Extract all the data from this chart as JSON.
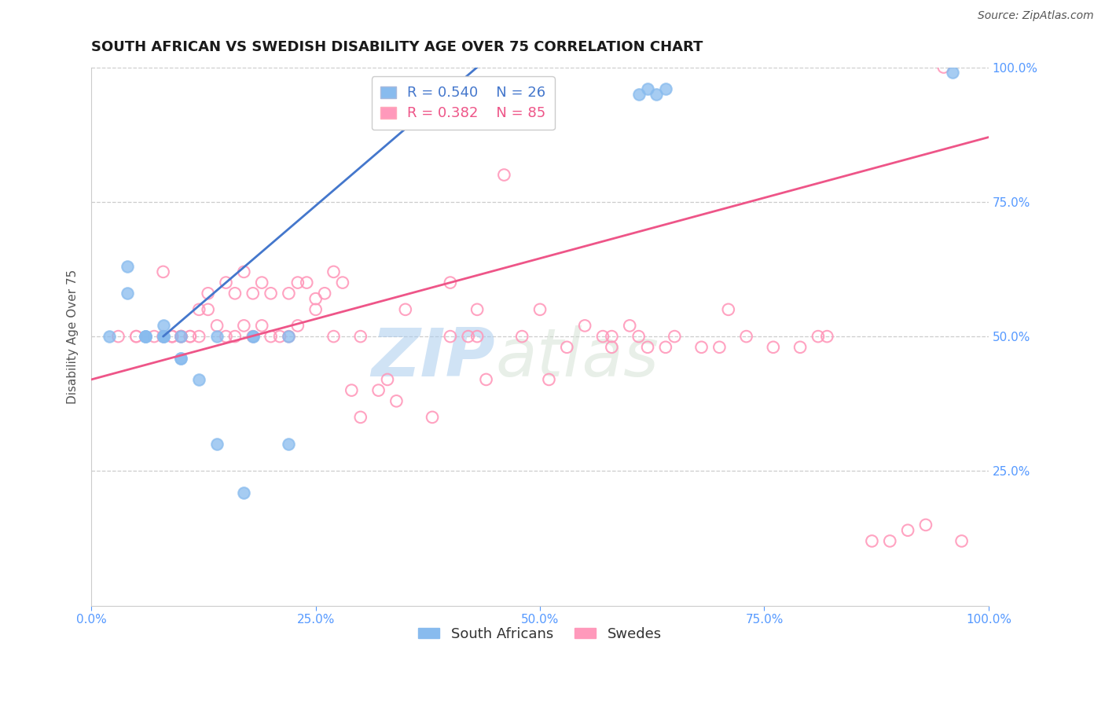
{
  "title": "SOUTH AFRICAN VS SWEDISH DISABILITY AGE OVER 75 CORRELATION CHART",
  "source": "Source: ZipAtlas.com",
  "ylabel": "Disability Age Over 75",
  "watermark_zip": "ZIP",
  "watermark_atlas": "atlas",
  "legend_r_blue": "R = 0.540",
  "legend_n_blue": "N = 26",
  "legend_r_pink": "R = 0.382",
  "legend_n_pink": "N = 85",
  "blue_scatter_color": "#88BBEE",
  "pink_scatter_color": "#FF99BB",
  "blue_line_color": "#4477CC",
  "pink_line_color": "#EE5588",
  "xlim": [
    0.0,
    100.0
  ],
  "ylim": [
    0.0,
    100.0
  ],
  "right_ytick_vals": [
    25,
    50,
    75,
    100
  ],
  "right_yticklabels": [
    "25.0%",
    "50.0%",
    "75.0%",
    "100.0%"
  ],
  "xtick_vals": [
    0,
    25,
    50,
    75,
    100
  ],
  "xticklabels": [
    "0.0%",
    "25.0%",
    "50.0%",
    "75.0%",
    "100.0%"
  ],
  "blue_scatter_x": [
    2,
    4,
    4,
    6,
    6,
    6,
    8,
    8,
    8,
    8,
    10,
    10,
    10,
    12,
    14,
    14,
    17,
    18,
    18,
    22,
    22,
    61,
    62,
    63,
    64,
    96
  ],
  "blue_scatter_y": [
    50,
    63,
    58,
    50,
    50,
    50,
    52,
    50,
    50,
    50,
    46,
    46,
    50,
    42,
    50,
    30,
    21,
    50,
    50,
    30,
    50,
    95,
    96,
    95,
    96,
    99
  ],
  "pink_scatter_x": [
    3,
    5,
    5,
    7,
    8,
    8,
    9,
    9,
    9,
    10,
    10,
    10,
    11,
    11,
    12,
    12,
    13,
    13,
    14,
    15,
    15,
    16,
    16,
    17,
    17,
    18,
    18,
    19,
    19,
    20,
    20,
    21,
    22,
    22,
    23,
    23,
    24,
    25,
    25,
    26,
    27,
    27,
    28,
    29,
    30,
    30,
    32,
    33,
    34,
    35,
    38,
    40,
    40,
    42,
    43,
    43,
    44,
    46,
    48,
    50,
    51,
    53,
    55,
    57,
    58,
    58,
    60,
    61,
    62,
    64,
    65,
    68,
    70,
    71,
    73,
    76,
    79,
    81,
    82,
    87,
    89,
    91,
    93,
    95,
    97
  ],
  "pink_scatter_y": [
    50,
    50,
    50,
    50,
    50,
    62,
    50,
    50,
    50,
    50,
    50,
    50,
    50,
    50,
    55,
    50,
    58,
    55,
    52,
    50,
    60,
    50,
    58,
    62,
    52,
    58,
    50,
    52,
    60,
    58,
    50,
    50,
    50,
    58,
    60,
    52,
    60,
    57,
    55,
    58,
    50,
    62,
    60,
    40,
    50,
    35,
    40,
    42,
    38,
    55,
    35,
    50,
    60,
    50,
    55,
    50,
    42,
    80,
    50,
    55,
    42,
    48,
    52,
    50,
    50,
    48,
    52,
    50,
    48,
    48,
    50,
    48,
    48,
    55,
    50,
    48,
    48,
    50,
    50,
    12,
    12,
    14,
    15,
    100,
    12
  ],
  "blue_line_x": [
    8,
    43
  ],
  "blue_line_y": [
    50,
    100
  ],
  "pink_line_x": [
    0,
    100
  ],
  "pink_line_y": [
    42,
    87
  ],
  "title_fontsize": 13,
  "axis_label_fontsize": 11,
  "tick_fontsize": 11,
  "legend_fontsize": 12,
  "accent_color": "#5599FF",
  "grid_color": "#CCCCCC",
  "bg_color": "#FFFFFF"
}
